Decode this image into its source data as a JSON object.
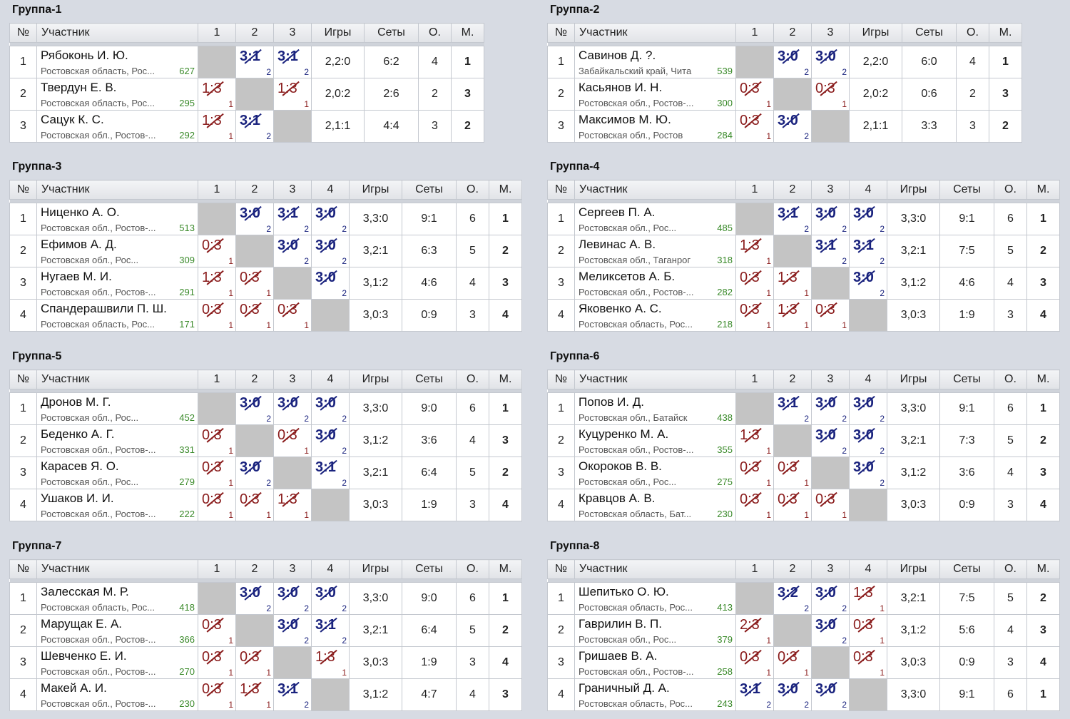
{
  "headers": {
    "num": "№",
    "name": "Участник",
    "games": "Игры",
    "sets": "Сеты",
    "points": "О.",
    "place": "М."
  },
  "groups": [
    {
      "title": "Группа-1",
      "players": [
        {
          "num": "1",
          "name": "Рябоконь И. Ю.",
          "region": "Ростовская область, Рос...",
          "rating": "627",
          "results": [
            null,
            {
              "s": "3:1",
              "p": "2"
            },
            {
              "s": "3:1",
              "p": "2"
            }
          ],
          "games": "2,2:0",
          "sets": "6:2",
          "points": "4",
          "place": "1"
        },
        {
          "num": "2",
          "name": "Твердун Е. В.",
          "region": "Ростовская область, Рос...",
          "rating": "295",
          "results": [
            {
              "s": "1:3",
              "p": "1"
            },
            null,
            {
              "s": "1:3",
              "p": "1"
            }
          ],
          "games": "2,0:2",
          "sets": "2:6",
          "points": "2",
          "place": "3"
        },
        {
          "num": "3",
          "name": "Сацук К. С.",
          "region": "Ростовская обл., Ростов-...",
          "rating": "292",
          "results": [
            {
              "s": "1:3",
              "p": "1"
            },
            {
              "s": "3:1",
              "p": "2"
            },
            null
          ],
          "games": "2,1:1",
          "sets": "4:4",
          "points": "3",
          "place": "2"
        }
      ]
    },
    {
      "title": "Группа-2",
      "players": [
        {
          "num": "1",
          "name": "Савинов Д. ?.",
          "region": "Забайкальский край, Чита",
          "rating": "539",
          "results": [
            null,
            {
              "s": "3:0",
              "p": "2"
            },
            {
              "s": "3:0",
              "p": "2"
            }
          ],
          "games": "2,2:0",
          "sets": "6:0",
          "points": "4",
          "place": "1"
        },
        {
          "num": "2",
          "name": "Касьянов И. Н.",
          "region": "Ростовская обл., Ростов-...",
          "rating": "300",
          "results": [
            {
              "s": "0:3",
              "p": "1"
            },
            null,
            {
              "s": "0:3",
              "p": "1"
            }
          ],
          "games": "2,0:2",
          "sets": "0:6",
          "points": "2",
          "place": "3"
        },
        {
          "num": "3",
          "name": "Максимов М. Ю.",
          "region": "Ростовская обл., Ростов",
          "rating": "284",
          "results": [
            {
              "s": "0:3",
              "p": "1"
            },
            {
              "s": "3:0",
              "p": "2"
            },
            null
          ],
          "games": "2,1:1",
          "sets": "3:3",
          "points": "3",
          "place": "2"
        }
      ]
    },
    {
      "title": "Группа-3",
      "players": [
        {
          "num": "1",
          "name": "Ниценко А. О.",
          "region": "Ростовская обл., Ростов-...",
          "rating": "513",
          "results": [
            null,
            {
              "s": "3:0",
              "p": "2"
            },
            {
              "s": "3:1",
              "p": "2"
            },
            {
              "s": "3:0",
              "p": "2"
            }
          ],
          "games": "3,3:0",
          "sets": "9:1",
          "points": "6",
          "place": "1"
        },
        {
          "num": "2",
          "name": "Ефимов А. Д.",
          "region": "Ростовская обл., Рос...",
          "rating": "309",
          "results": [
            {
              "s": "0:3",
              "p": "1"
            },
            null,
            {
              "s": "3:0",
              "p": "2"
            },
            {
              "s": "3:0",
              "p": "2"
            }
          ],
          "games": "3,2:1",
          "sets": "6:3",
          "points": "5",
          "place": "2"
        },
        {
          "num": "3",
          "name": "Нугаев М. И.",
          "region": "Ростовская обл., Ростов-...",
          "rating": "291",
          "results": [
            {
              "s": "1:3",
              "p": "1"
            },
            {
              "s": "0:3",
              "p": "1"
            },
            null,
            {
              "s": "3:0",
              "p": "2"
            }
          ],
          "games": "3,1:2",
          "sets": "4:6",
          "points": "4",
          "place": "3"
        },
        {
          "num": "4",
          "name": "Спандерашвили П. Ш.",
          "region": "Ростовская область, Рос...",
          "rating": "171",
          "results": [
            {
              "s": "0:3",
              "p": "1"
            },
            {
              "s": "0:3",
              "p": "1"
            },
            {
              "s": "0:3",
              "p": "1"
            },
            null
          ],
          "games": "3,0:3",
          "sets": "0:9",
          "points": "3",
          "place": "4"
        }
      ]
    },
    {
      "title": "Группа-4",
      "players": [
        {
          "num": "1",
          "name": "Сергеев П. А.",
          "region": "Ростовская обл., Рос...",
          "rating": "485",
          "results": [
            null,
            {
              "s": "3:1",
              "p": "2"
            },
            {
              "s": "3:0",
              "p": "2"
            },
            {
              "s": "3:0",
              "p": "2"
            }
          ],
          "games": "3,3:0",
          "sets": "9:1",
          "points": "6",
          "place": "1"
        },
        {
          "num": "2",
          "name": "Левинас А. В.",
          "region": "Ростовская обл., Таганрог",
          "rating": "318",
          "results": [
            {
              "s": "1:3",
              "p": "1"
            },
            null,
            {
              "s": "3:1",
              "p": "2"
            },
            {
              "s": "3:1",
              "p": "2"
            }
          ],
          "games": "3,2:1",
          "sets": "7:5",
          "points": "5",
          "place": "2"
        },
        {
          "num": "3",
          "name": "Меликсетов А. Б.",
          "region": "Ростовская обл., Ростов-...",
          "rating": "282",
          "results": [
            {
              "s": "0:3",
              "p": "1"
            },
            {
              "s": "1:3",
              "p": "1"
            },
            null,
            {
              "s": "3:0",
              "p": "2"
            }
          ],
          "games": "3,1:2",
          "sets": "4:6",
          "points": "4",
          "place": "3"
        },
        {
          "num": "4",
          "name": "Яковенко А. С.",
          "region": "Ростовская область, Рос...",
          "rating": "218",
          "results": [
            {
              "s": "0:3",
              "p": "1"
            },
            {
              "s": "1:3",
              "p": "1"
            },
            {
              "s": "0:3",
              "p": "1"
            },
            null
          ],
          "games": "3,0:3",
          "sets": "1:9",
          "points": "3",
          "place": "4"
        }
      ]
    },
    {
      "title": "Группа-5",
      "players": [
        {
          "num": "1",
          "name": "Дронов М. Г.",
          "region": "Ростовская обл., Рос...",
          "rating": "452",
          "results": [
            null,
            {
              "s": "3:0",
              "p": "2"
            },
            {
              "s": "3:0",
              "p": "2"
            },
            {
              "s": "3:0",
              "p": "2"
            }
          ],
          "games": "3,3:0",
          "sets": "9:0",
          "points": "6",
          "place": "1"
        },
        {
          "num": "2",
          "name": "Беденко А. Г.",
          "region": "Ростовская обл., Ростов-...",
          "rating": "331",
          "results": [
            {
              "s": "0:3",
              "p": "1"
            },
            null,
            {
              "s": "0:3",
              "p": "1"
            },
            {
              "s": "3:0",
              "p": "2"
            }
          ],
          "games": "3,1:2",
          "sets": "3:6",
          "points": "4",
          "place": "3"
        },
        {
          "num": "3",
          "name": "Карасев Я. О.",
          "region": "Ростовская обл., Рос...",
          "rating": "279",
          "results": [
            {
              "s": "0:3",
              "p": "1"
            },
            {
              "s": "3:0",
              "p": "2"
            },
            null,
            {
              "s": "3:1",
              "p": "2"
            }
          ],
          "games": "3,2:1",
          "sets": "6:4",
          "points": "5",
          "place": "2"
        },
        {
          "num": "4",
          "name": "Ушаков И. И.",
          "region": "Ростовская обл., Ростов-...",
          "rating": "222",
          "results": [
            {
              "s": "0:3",
              "p": "1"
            },
            {
              "s": "0:3",
              "p": "1"
            },
            {
              "s": "1:3",
              "p": "1"
            },
            null
          ],
          "games": "3,0:3",
          "sets": "1:9",
          "points": "3",
          "place": "4"
        }
      ]
    },
    {
      "title": "Группа-6",
      "players": [
        {
          "num": "1",
          "name": "Попов И. Д.",
          "region": "Ростовская обл., Батайск",
          "rating": "438",
          "results": [
            null,
            {
              "s": "3:1",
              "p": "2"
            },
            {
              "s": "3:0",
              "p": "2"
            },
            {
              "s": "3:0",
              "p": "2"
            }
          ],
          "games": "3,3:0",
          "sets": "9:1",
          "points": "6",
          "place": "1"
        },
        {
          "num": "2",
          "name": "Куцуренко М. А.",
          "region": "Ростовская обл., Ростов-...",
          "rating": "355",
          "results": [
            {
              "s": "1:3",
              "p": "1"
            },
            null,
            {
              "s": "3:0",
              "p": "2"
            },
            {
              "s": "3:0",
              "p": "2"
            }
          ],
          "games": "3,2:1",
          "sets": "7:3",
          "points": "5",
          "place": "2"
        },
        {
          "num": "3",
          "name": "Окороков В. В.",
          "region": "Ростовская обл., Рос...",
          "rating": "275",
          "results": [
            {
              "s": "0:3",
              "p": "1"
            },
            {
              "s": "0:3",
              "p": "1"
            },
            null,
            {
              "s": "3:0",
              "p": "2"
            }
          ],
          "games": "3,1:2",
          "sets": "3:6",
          "points": "4",
          "place": "3"
        },
        {
          "num": "4",
          "name": "Кравцов А. В.",
          "region": "Ростовская область, Бат...",
          "rating": "230",
          "results": [
            {
              "s": "0:3",
              "p": "1"
            },
            {
              "s": "0:3",
              "p": "1"
            },
            {
              "s": "0:3",
              "p": "1"
            },
            null
          ],
          "games": "3,0:3",
          "sets": "0:9",
          "points": "3",
          "place": "4"
        }
      ]
    },
    {
      "title": "Группа-7",
      "players": [
        {
          "num": "1",
          "name": "Залесская М. Р.",
          "region": "Ростовская область, Рос...",
          "rating": "418",
          "results": [
            null,
            {
              "s": "3:0",
              "p": "2"
            },
            {
              "s": "3:0",
              "p": "2"
            },
            {
              "s": "3:0",
              "p": "2"
            }
          ],
          "games": "3,3:0",
          "sets": "9:0",
          "points": "6",
          "place": "1"
        },
        {
          "num": "2",
          "name": "Марущак Е. А.",
          "region": "Ростовская обл., Ростов-...",
          "rating": "366",
          "results": [
            {
              "s": "0:3",
              "p": "1"
            },
            null,
            {
              "s": "3:0",
              "p": "2"
            },
            {
              "s": "3:1",
              "p": "2"
            }
          ],
          "games": "3,2:1",
          "sets": "6:4",
          "points": "5",
          "place": "2"
        },
        {
          "num": "3",
          "name": "Шевченко Е. И.",
          "region": "Ростовская обл., Ростов-...",
          "rating": "270",
          "results": [
            {
              "s": "0:3",
              "p": "1"
            },
            {
              "s": "0:3",
              "p": "1"
            },
            null,
            {
              "s": "1:3",
              "p": "1"
            }
          ],
          "games": "3,0:3",
          "sets": "1:9",
          "points": "3",
          "place": "4"
        },
        {
          "num": "4",
          "name": "Макей А. И.",
          "region": "Ростовская обл., Ростов-...",
          "rating": "230",
          "results": [
            {
              "s": "0:3",
              "p": "1"
            },
            {
              "s": "1:3",
              "p": "1"
            },
            {
              "s": "3:1",
              "p": "2"
            },
            null
          ],
          "games": "3,1:2",
          "sets": "4:7",
          "points": "4",
          "place": "3"
        }
      ]
    },
    {
      "title": "Группа-8",
      "players": [
        {
          "num": "1",
          "name": "Шепитько О. Ю.",
          "region": "Ростовская область, Рос...",
          "rating": "413",
          "results": [
            null,
            {
              "s": "3:2",
              "p": "2"
            },
            {
              "s": "3:0",
              "p": "2"
            },
            {
              "s": "1:3",
              "p": "1"
            }
          ],
          "games": "3,2:1",
          "sets": "7:5",
          "points": "5",
          "place": "2"
        },
        {
          "num": "2",
          "name": "Гаврилин В. П.",
          "region": "Ростовская обл., Рос...",
          "rating": "379",
          "results": [
            {
              "s": "2:3",
              "p": "1"
            },
            null,
            {
              "s": "3:0",
              "p": "2"
            },
            {
              "s": "0:3",
              "p": "1"
            }
          ],
          "games": "3,1:2",
          "sets": "5:6",
          "points": "4",
          "place": "3"
        },
        {
          "num": "3",
          "name": "Гришаев В. А.",
          "region": "Ростовская обл., Ростов-...",
          "rating": "258",
          "results": [
            {
              "s": "0:3",
              "p": "1"
            },
            {
              "s": "0:3",
              "p": "1"
            },
            null,
            {
              "s": "0:3",
              "p": "1"
            }
          ],
          "games": "3,0:3",
          "sets": "0:9",
          "points": "3",
          "place": "4"
        },
        {
          "num": "4",
          "name": "Граничный Д. А.",
          "region": "Ростовская область, Рос...",
          "rating": "243",
          "results": [
            {
              "s": "3:1",
              "p": "2"
            },
            {
              "s": "3:0",
              "p": "2"
            },
            {
              "s": "3:0",
              "p": "2"
            },
            null
          ],
          "games": "3,3:0",
          "sets": "9:1",
          "points": "6",
          "place": "1"
        }
      ]
    }
  ]
}
